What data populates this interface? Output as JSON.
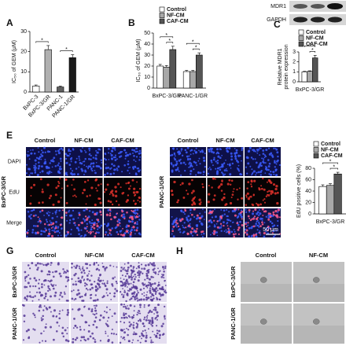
{
  "panel_labels": [
    "A",
    "B",
    "C",
    "E",
    "G",
    "H"
  ],
  "chart_data": [
    {
      "type": "bar",
      "y_label": "IC₅₀ of GEM (μM)",
      "categories": [
        "BxPC-3",
        "BxPC-3/GR",
        "PANC-1",
        "PANC-1/GR"
      ],
      "values": [
        3,
        21,
        2.5,
        17
      ],
      "errors": [
        0.5,
        2,
        0.4,
        1.5
      ],
      "colors": [
        "#ffffff",
        "#b0b0b0",
        "#606060",
        "#1a1a1a"
      ],
      "ylim": [
        0,
        30
      ],
      "yticks": [
        0,
        10,
        20,
        30
      ],
      "annotations": [
        "*",
        "*"
      ]
    },
    {
      "type": "bar",
      "y_label": "IC₅₀ of GEM (μM)",
      "categories": [
        "BxPC-3/GR",
        "PANC-1/GR"
      ],
      "series": [
        {
          "name": "Control",
          "color": "#ffffff",
          "values": [
            20,
            15
          ],
          "errors": [
            1.5,
            1
          ]
        },
        {
          "name": "NF-CM",
          "color": "#a8a8a8",
          "values": [
            19,
            15
          ],
          "errors": [
            1.5,
            1
          ]
        },
        {
          "name": "CAF-CM",
          "color": "#555555",
          "values": [
            35,
            30
          ],
          "errors": [
            3,
            2
          ]
        }
      ],
      "ylim": [
        0,
        50
      ],
      "yticks": [
        0,
        10,
        20,
        30,
        40,
        50
      ],
      "annotations": [
        "*",
        "*",
        "*",
        "*"
      ]
    },
    {
      "type": "bar",
      "y_label": [
        "Relative MDR1",
        "protein expression"
      ],
      "categories": [
        "BxPC-3/GR"
      ],
      "series": [
        {
          "name": "Control",
          "color": "#ffffff",
          "values": [
            1.0
          ],
          "errors": [
            0.05
          ]
        },
        {
          "name": "NF-CM",
          "color": "#a8a8a8",
          "values": [
            1.05
          ],
          "errors": [
            0.05
          ]
        },
        {
          "name": "CAF-CM",
          "color": "#555555",
          "values": [
            2.4
          ],
          "errors": [
            0.25
          ]
        }
      ],
      "ylim": [
        0,
        3
      ],
      "yticks": [
        0,
        1,
        2,
        3
      ],
      "annotations": [
        "*",
        "*"
      ]
    },
    {
      "type": "bar",
      "y_label": "EdU positive cells (%)",
      "categories": [
        "BxPC-3/GR"
      ],
      "series": [
        {
          "name": "Control",
          "color": "#ffffff",
          "values": [
            48
          ],
          "errors": [
            3
          ]
        },
        {
          "name": "NF-CM",
          "color": "#a8a8a8",
          "values": [
            50
          ],
          "errors": [
            3
          ]
        },
        {
          "name": "CAF-CM",
          "color": "#555555",
          "values": [
            70
          ],
          "errors": [
            3
          ]
        }
      ],
      "ylim": [
        0,
        80
      ],
      "yticks": [
        0,
        20,
        40,
        60,
        80
      ],
      "annotations": [
        "*",
        "*"
      ]
    }
  ],
  "blot": {
    "labels": [
      "MDR1",
      "GAPDH"
    ]
  },
  "panel_E": {
    "columns": [
      "Control",
      "NF-CM",
      "CAF-CM"
    ],
    "rows": [
      "DAPI",
      "EdU",
      "Merge"
    ],
    "cell_lines": [
      "BxPC-3/GR",
      "PANC-1/GR"
    ],
    "scale_bar": "50 μm"
  },
  "panel_G": {
    "columns": [
      "Control",
      "NF-CM",
      "CAF-CM"
    ],
    "rows": [
      "BxPC-3/GR",
      "PANC-1/GR"
    ]
  },
  "panel_H": {
    "columns": [
      "Control",
      "NF-CM"
    ],
    "rows": [
      "BxPC-3/GR",
      "PANC-1/GR"
    ]
  }
}
